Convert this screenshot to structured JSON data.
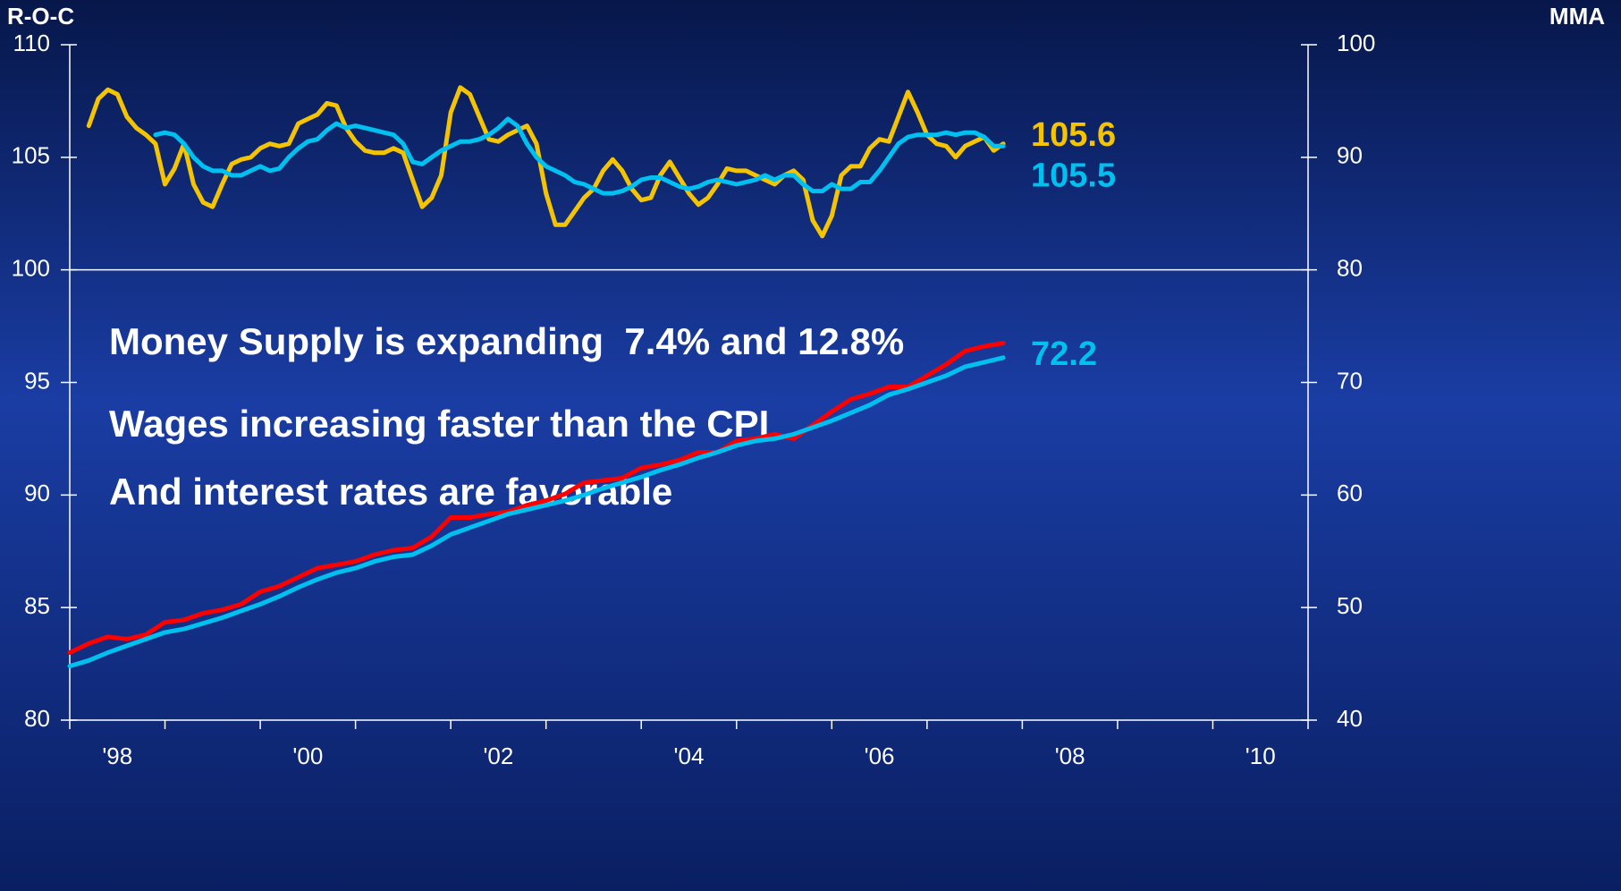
{
  "chart_data": {
    "type": "line",
    "ylabel": "R-O-C",
    "y2label": "MMA",
    "xlim": [
      1998,
      2011
    ],
    "xticks": [
      {
        "value": 1998.5,
        "label": "'98"
      },
      {
        "value": 2000.5,
        "label": "'00"
      },
      {
        "value": 2002.5,
        "label": "'02"
      },
      {
        "value": 2004.5,
        "label": "'04"
      },
      {
        "value": 2006.5,
        "label": "'06"
      },
      {
        "value": 2008.5,
        "label": "'08"
      },
      {
        "value": 2010.5,
        "label": "'10"
      }
    ],
    "xtick_marks": [
      1998,
      1999,
      2000,
      2001,
      2002,
      2003,
      2004,
      2005,
      2006,
      2007,
      2008,
      2009,
      2010,
      2011
    ],
    "ylim": [
      80,
      110
    ],
    "yticks": [
      80,
      85,
      90,
      95,
      100,
      105,
      110
    ],
    "y2lim": [
      40,
      100
    ],
    "y2ticks": [
      40,
      50,
      60,
      70,
      80,
      90,
      100
    ],
    "reference_line": 100,
    "annotations": [
      "Money Supply is expanding  7.4% and 12.8%",
      "Wages increasing faster than the CPI",
      "And interest rates are favorable"
    ],
    "series": [
      {
        "color": "#f5c400",
        "axis": "y",
        "end_label": true,
        "x": [
          1998.2,
          1998.3,
          1998.4,
          1998.5,
          1998.6,
          1998.7,
          1998.8,
          1998.9,
          1999.0,
          1999.1,
          1999.2,
          1999.3,
          1999.4,
          1999.5,
          1999.6,
          1999.7,
          1999.8,
          1999.9,
          2000.0,
          2000.1,
          2000.2,
          2000.3,
          2000.4,
          2000.5,
          2000.6,
          2000.7,
          2000.8,
          2000.9,
          2001.0,
          2001.1,
          2001.2,
          2001.3,
          2001.4,
          2001.5,
          2001.6,
          2001.7,
          2001.8,
          2001.9,
          2002.0,
          2002.1,
          2002.2,
          2002.3,
          2002.4,
          2002.5,
          2002.6,
          2002.7,
          2002.8,
          2002.9,
          2003.0,
          2003.1,
          2003.2,
          2003.3,
          2003.4,
          2003.5,
          2003.6,
          2003.7,
          2003.8,
          2003.9,
          2004.0,
          2004.1,
          2004.2,
          2004.3,
          2004.4,
          2004.5,
          2004.6,
          2004.7,
          2004.8,
          2004.9,
          2005.0,
          2005.1,
          2005.2,
          2005.3,
          2005.4,
          2005.5,
          2005.6,
          2005.7,
          2005.8,
          2005.9,
          2006.0,
          2006.1,
          2006.2,
          2006.3,
          2006.4,
          2006.5,
          2006.6,
          2006.7,
          2006.8,
          2006.9,
          2007.0,
          2007.1,
          2007.2,
          2007.3,
          2007.4,
          2007.5,
          2007.6,
          2007.7,
          2007.8
        ],
        "values": [
          106.4,
          107.6,
          108.0,
          107.8,
          106.8,
          106.3,
          106.0,
          105.6,
          103.8,
          104.5,
          105.6,
          103.8,
          103.0,
          102.8,
          103.8,
          104.7,
          104.9,
          105.0,
          105.4,
          105.6,
          105.5,
          105.6,
          106.5,
          106.7,
          106.9,
          107.4,
          107.3,
          106.3,
          105.7,
          105.3,
          105.2,
          105.2,
          105.4,
          105.2,
          104.0,
          102.8,
          103.2,
          104.2,
          107.0,
          108.1,
          107.8,
          106.8,
          105.8,
          105.7,
          106.0,
          106.2,
          106.4,
          105.6,
          103.4,
          102.0,
          102.0,
          102.6,
          103.2,
          103.6,
          104.4,
          104.9,
          104.4,
          103.6,
          103.1,
          103.2,
          104.2,
          104.8,
          104.1,
          103.4,
          102.9,
          103.2,
          103.8,
          104.5,
          104.4,
          104.4,
          104.2,
          104.0,
          103.8,
          104.2,
          104.4,
          104.0,
          102.2,
          101.5,
          102.4,
          104.2,
          104.6,
          104.6,
          105.4,
          105.8,
          105.7,
          106.8,
          107.9,
          107.0,
          106.0,
          105.6,
          105.5,
          105.0,
          105.5,
          105.7,
          105.9,
          105.3,
          105.6
        ]
      },
      {
        "color": "#00c0f0",
        "axis": "y",
        "end_label": true,
        "x": [
          1998.9,
          1999.0,
          1999.1,
          1999.2,
          1999.3,
          1999.4,
          1999.5,
          1999.6,
          1999.7,
          1999.8,
          1999.9,
          2000.0,
          2000.1,
          2000.2,
          2000.3,
          2000.4,
          2000.5,
          2000.6,
          2000.7,
          2000.8,
          2000.9,
          2001.0,
          2001.1,
          2001.2,
          2001.3,
          2001.4,
          2001.5,
          2001.6,
          2001.7,
          2001.8,
          2001.9,
          2002.0,
          2002.1,
          2002.2,
          2002.3,
          2002.4,
          2002.5,
          2002.6,
          2002.7,
          2002.8,
          2002.9,
          2003.0,
          2003.1,
          2003.2,
          2003.3,
          2003.4,
          2003.5,
          2003.6,
          2003.7,
          2003.8,
          2003.9,
          2004.0,
          2004.1,
          2004.2,
          2004.3,
          2004.4,
          2004.5,
          2004.6,
          2004.7,
          2004.8,
          2004.9,
          2005.0,
          2005.1,
          2005.2,
          2005.3,
          2005.4,
          2005.5,
          2005.6,
          2005.7,
          2005.8,
          2005.9,
          2006.0,
          2006.1,
          2006.2,
          2006.3,
          2006.4,
          2006.5,
          2006.6,
          2006.7,
          2006.8,
          2006.9,
          2007.0,
          2007.1,
          2007.2,
          2007.3,
          2007.4,
          2007.5,
          2007.6,
          2007.7,
          2007.8
        ],
        "values": [
          106.0,
          106.1,
          106.0,
          105.6,
          105.0,
          104.6,
          104.4,
          104.4,
          104.2,
          104.2,
          104.4,
          104.6,
          104.4,
          104.5,
          105.0,
          105.4,
          105.7,
          105.8,
          106.2,
          106.5,
          106.3,
          106.4,
          106.3,
          106.2,
          106.1,
          106.0,
          105.6,
          104.8,
          104.7,
          105.0,
          105.3,
          105.5,
          105.7,
          105.7,
          105.8,
          106.0,
          106.3,
          106.7,
          106.4,
          105.6,
          105.0,
          104.6,
          104.4,
          104.2,
          103.9,
          103.8,
          103.6,
          103.4,
          103.4,
          103.5,
          103.7,
          104.0,
          104.1,
          104.1,
          103.9,
          103.7,
          103.6,
          103.7,
          103.9,
          104.0,
          103.9,
          103.8,
          103.9,
          104.0,
          104.2,
          104.0,
          104.2,
          104.2,
          103.8,
          103.5,
          103.5,
          103.8,
          103.6,
          103.6,
          103.9,
          103.9,
          104.4,
          105.0,
          105.6,
          105.9,
          106.0,
          106.0,
          106.0,
          106.1,
          106.0,
          106.1,
          106.1,
          105.9,
          105.5,
          105.5
        ]
      },
      {
        "color": "#ff0000",
        "axis": "y2",
        "end_label": false,
        "x": [
          1998.0,
          1998.2,
          1998.4,
          1998.6,
          1998.8,
          1999.0,
          1999.2,
          1999.4,
          1999.6,
          1999.8,
          2000.0,
          2000.2,
          2000.4,
          2000.6,
          2000.8,
          2001.0,
          2001.2,
          2001.4,
          2001.6,
          2001.8,
          2002.0,
          2002.2,
          2002.4,
          2002.6,
          2002.8,
          2003.0,
          2003.2,
          2003.4,
          2003.6,
          2003.8,
          2004.0,
          2004.2,
          2004.4,
          2004.6,
          2004.8,
          2005.0,
          2005.2,
          2005.4,
          2005.6,
          2005.8,
          2006.0,
          2006.2,
          2006.4,
          2006.6,
          2006.8,
          2007.0,
          2007.2,
          2007.4,
          2007.6,
          2007.8
        ],
        "values": [
          46.0,
          46.8,
          47.4,
          47.2,
          47.6,
          48.7,
          48.9,
          49.5,
          49.8,
          50.3,
          51.4,
          51.9,
          52.7,
          53.5,
          53.8,
          54.1,
          54.7,
          55.1,
          55.3,
          56.3,
          58.0,
          58.0,
          58.3,
          58.5,
          59.1,
          59.5,
          60.1,
          61.1,
          61.3,
          61.5,
          62.4,
          62.7,
          63.1,
          63.8,
          63.8,
          64.8,
          65.0,
          65.4,
          65.0,
          66.2,
          67.4,
          68.5,
          69.0,
          69.6,
          69.6,
          70.6,
          71.6,
          72.8,
          73.2,
          73.5
        ]
      },
      {
        "color": "#00c0f0",
        "axis": "y2",
        "end_label": true,
        "x": [
          1998.0,
          1998.2,
          1998.4,
          1998.6,
          1998.8,
          1999.0,
          1999.2,
          1999.4,
          1999.6,
          1999.8,
          2000.0,
          2000.2,
          2000.4,
          2000.6,
          2000.8,
          2001.0,
          2001.2,
          2001.4,
          2001.6,
          2001.8,
          2002.0,
          2002.2,
          2002.4,
          2002.6,
          2002.8,
          2003.0,
          2003.2,
          2003.4,
          2003.6,
          2003.8,
          2004.0,
          2004.2,
          2004.4,
          2004.6,
          2004.8,
          2005.0,
          2005.2,
          2005.4,
          2005.6,
          2005.8,
          2006.0,
          2006.2,
          2006.4,
          2006.6,
          2006.8,
          2007.0,
          2007.2,
          2007.4,
          2007.6,
          2007.8
        ],
        "values": [
          44.8,
          45.3,
          46.0,
          46.6,
          47.2,
          47.8,
          48.1,
          48.6,
          49.1,
          49.7,
          50.3,
          51.0,
          51.8,
          52.5,
          53.1,
          53.5,
          54.1,
          54.5,
          54.7,
          55.5,
          56.5,
          57.1,
          57.7,
          58.3,
          58.7,
          59.1,
          59.5,
          60.0,
          60.6,
          61.1,
          61.6,
          62.2,
          62.7,
          63.3,
          63.8,
          64.4,
          64.8,
          65.0,
          65.4,
          66.0,
          66.6,
          67.3,
          68.0,
          68.9,
          69.4,
          70.0,
          70.6,
          71.4,
          71.8,
          72.2
        ]
      }
    ]
  }
}
